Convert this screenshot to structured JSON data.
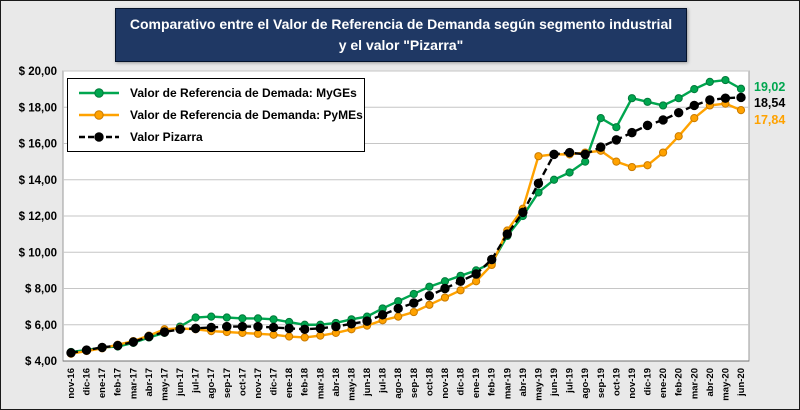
{
  "colors": {
    "title_bg": "#1F3864",
    "figure_bg": "#E9E9E9",
    "myges_green": "#00A64F",
    "pymes_orange": "#FFA200",
    "pizarra_black": "#000000"
  },
  "chart_data": {
    "type": "line",
    "title": "Comparativo entre el Valor de Referencia de Demanda según segmento industrial y el valor \"Pizarra\"",
    "xlabel": "",
    "ylabel": "",
    "ylim": [
      4,
      20
    ],
    "grid": true,
    "legend_position": "top-left-inside",
    "y_ticks": [
      {
        "value": 4,
        "label": "$ 4,00"
      },
      {
        "value": 6,
        "label": "$ 6,00"
      },
      {
        "value": 8,
        "label": "$ 8,00"
      },
      {
        "value": 10,
        "label": "$ 10,00"
      },
      {
        "value": 12,
        "label": "$ 12,00"
      },
      {
        "value": 14,
        "label": "$ 14,00"
      },
      {
        "value": 16,
        "label": "$ 16,00"
      },
      {
        "value": 18,
        "label": "$ 18,00"
      },
      {
        "value": 20,
        "label": "$ 20,00"
      }
    ],
    "categories": [
      "nov-16",
      "dic-16",
      "ene-17",
      "feb-17",
      "mar-17",
      "abr-17",
      "may-17",
      "jun-17",
      "jul-17",
      "ago-17",
      "sep-17",
      "oct-17",
      "nov-17",
      "dic-17",
      "ene-18",
      "feb-18",
      "mar-18",
      "abr-18",
      "may-18",
      "jun-18",
      "jul-18",
      "ago-18",
      "sep-18",
      "oct-18",
      "nov-18",
      "dic-18",
      "ene-19",
      "feb-19",
      "mar-19",
      "abr-19",
      "may-19",
      "jun-19",
      "jul-19",
      "ago-19",
      "sep-19",
      "oct-19",
      "nov-19",
      "dic-19",
      "ene-20",
      "feb-20",
      "mar-20",
      "abr-20",
      "may-20",
      "jun-20"
    ],
    "series": [
      {
        "id": "myges",
        "name": "Valor de Referencia de Demada: MyGEs",
        "color": "#00A64F",
        "marker_stroke": "#007A3A",
        "style": "solid",
        "values": [
          4.5,
          4.6,
          4.75,
          4.8,
          5.0,
          5.3,
          5.55,
          5.9,
          6.4,
          6.45,
          6.4,
          6.35,
          6.35,
          6.3,
          6.15,
          6.0,
          6.0,
          6.1,
          6.3,
          6.45,
          6.9,
          7.3,
          7.7,
          8.1,
          8.4,
          8.7,
          9.0,
          9.4,
          10.9,
          12.0,
          13.3,
          14.0,
          14.4,
          15.0,
          17.4,
          16.9,
          18.5,
          18.3,
          18.1,
          18.5,
          19.0,
          19.4,
          19.5,
          19.02
        ]
      },
      {
        "id": "pymes",
        "name": "Valor de Referencia de Demanda: PyMEs",
        "color": "#FFA200",
        "marker_stroke": "#C97A00",
        "style": "solid",
        "values": [
          4.4,
          4.55,
          4.7,
          4.9,
          5.1,
          5.4,
          5.75,
          5.8,
          5.75,
          5.65,
          5.6,
          5.55,
          5.5,
          5.45,
          5.35,
          5.3,
          5.4,
          5.55,
          5.75,
          5.95,
          6.25,
          6.45,
          6.7,
          7.1,
          7.5,
          7.9,
          8.4,
          9.3,
          11.2,
          12.4,
          15.3,
          15.4,
          15.4,
          15.5,
          15.6,
          15.0,
          14.7,
          14.8,
          15.5,
          16.4,
          17.4,
          18.1,
          18.2,
          17.84
        ]
      },
      {
        "id": "pizarra",
        "name": "Valor Pizarra",
        "color": "#000000",
        "marker_stroke": "#000000",
        "style": "dashed",
        "values": [
          4.45,
          4.6,
          4.75,
          4.85,
          5.05,
          5.35,
          5.6,
          5.75,
          5.8,
          5.85,
          5.9,
          5.9,
          5.9,
          5.85,
          5.8,
          5.75,
          5.8,
          5.9,
          6.05,
          6.2,
          6.55,
          6.9,
          7.2,
          7.6,
          8.0,
          8.4,
          8.8,
          9.6,
          11.0,
          12.2,
          13.8,
          15.4,
          15.5,
          15.4,
          15.8,
          16.2,
          16.6,
          17.0,
          17.3,
          17.7,
          18.1,
          18.4,
          18.5,
          18.54
        ]
      }
    ],
    "end_labels": [
      {
        "text": "19,02",
        "series": "myges",
        "color": "#00A64F"
      },
      {
        "text": "18,54",
        "series": "pizarra",
        "color": "#000000"
      },
      {
        "text": "17,84",
        "series": "pymes",
        "color": "#FFA200"
      }
    ]
  }
}
